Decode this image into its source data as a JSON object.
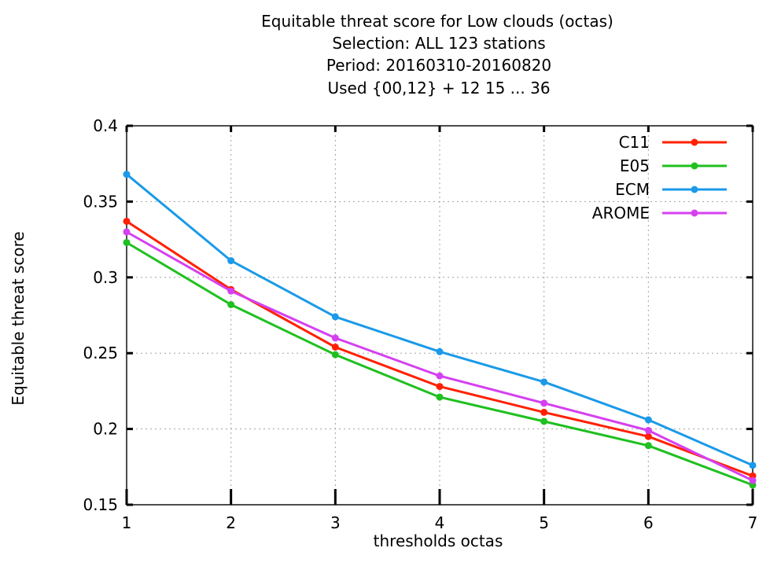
{
  "chart_data": {
    "type": "line",
    "title_lines": [
      "Equitable threat score  for Low clouds (octas)",
      "Selection: ALL    123 stations",
      "Period: 20160310-20160820",
      "Used {00,12} + 12 15 ... 36"
    ],
    "xlabel": "thresholds octas",
    "ylabel": "Equitable threat score",
    "x": [
      1,
      2,
      3,
      4,
      5,
      6,
      7
    ],
    "xlim": [
      1,
      7
    ],
    "ylim": [
      0.15,
      0.4
    ],
    "xticks": [
      "1",
      "2",
      "3",
      "4",
      "5",
      "6",
      "7"
    ],
    "yticks": [
      "0.15",
      "0.2",
      "0.25",
      "0.3",
      "0.35",
      "0.4"
    ],
    "grid": true,
    "legend_position": "top-right",
    "series": [
      {
        "name": "C11",
        "color": "#ff2000",
        "values": [
          0.337,
          0.292,
          0.254,
          0.228,
          0.211,
          0.195,
          0.169
        ]
      },
      {
        "name": "E05",
        "color": "#1fc01f",
        "values": [
          0.323,
          0.282,
          0.249,
          0.221,
          0.205,
          0.189,
          0.163
        ]
      },
      {
        "name": "ECM",
        "color": "#1a9ae8",
        "values": [
          0.368,
          0.311,
          0.274,
          0.251,
          0.231,
          0.206,
          0.176
        ]
      },
      {
        "name": "AROME",
        "color": "#d540f0",
        "values": [
          0.33,
          0.291,
          0.26,
          0.235,
          0.217,
          0.199,
          0.166
        ]
      }
    ]
  }
}
